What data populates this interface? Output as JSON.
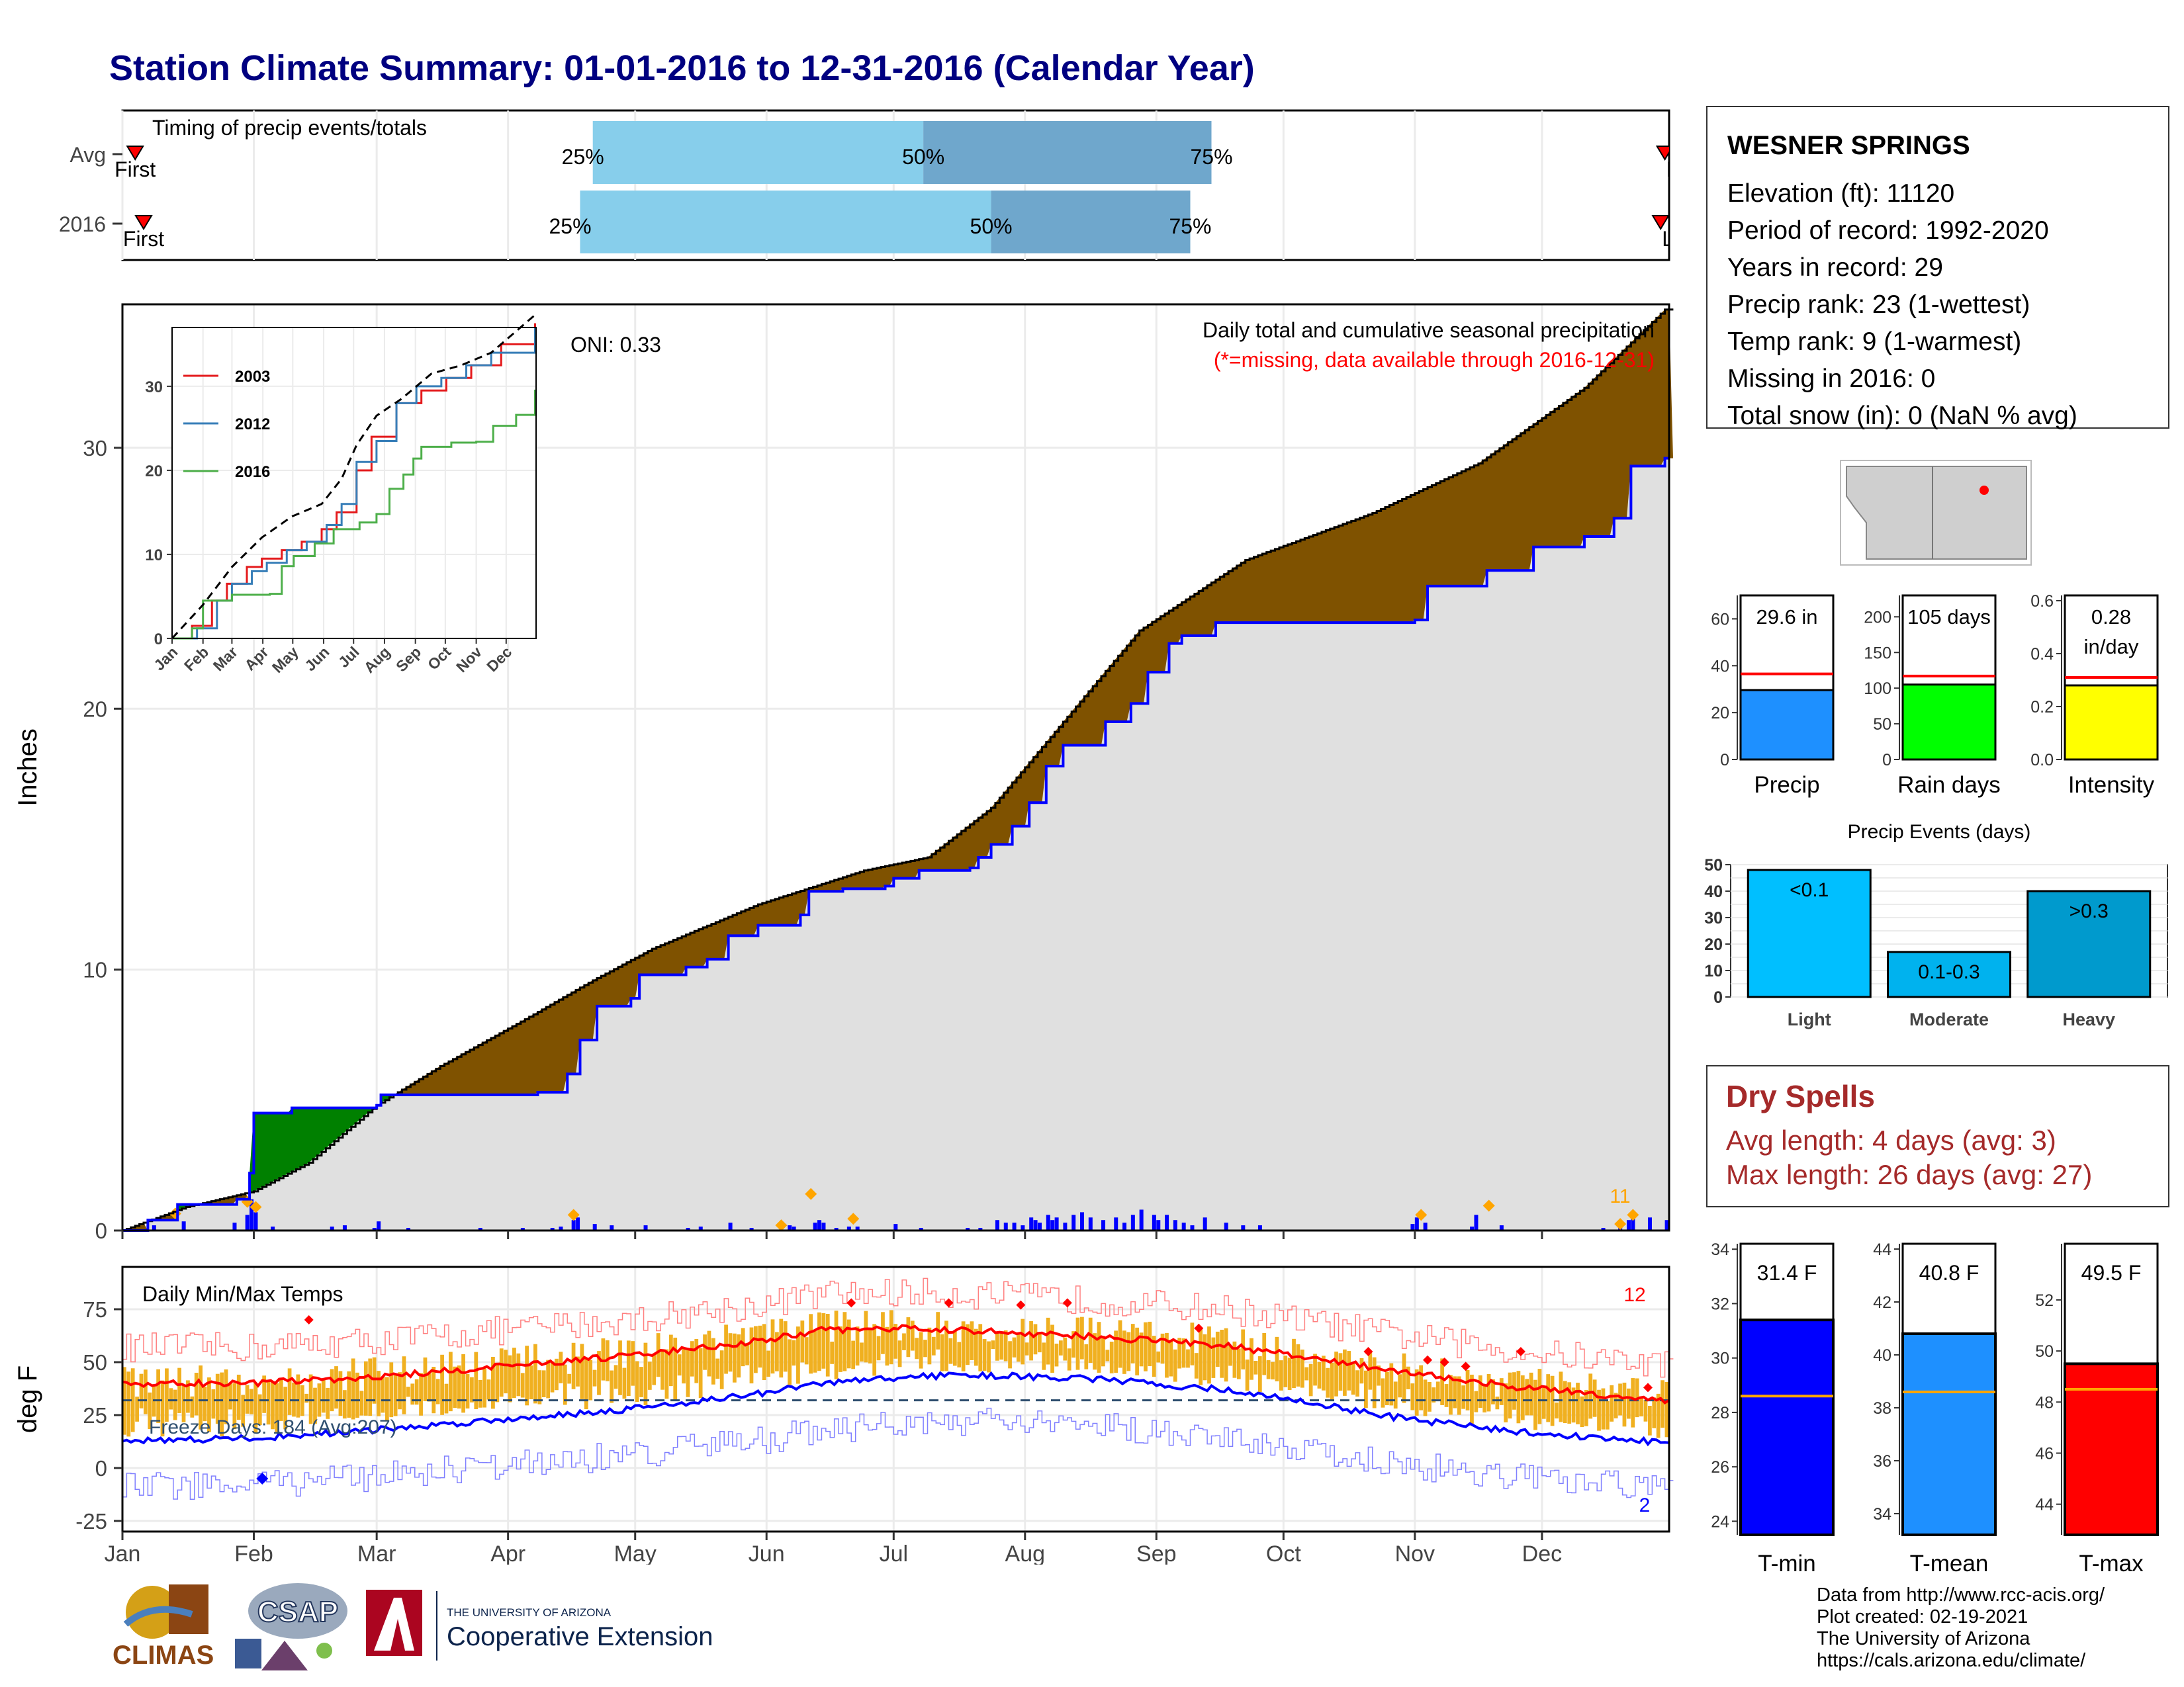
{
  "title": "Station Climate Summary: 01-01-2016 to 12-31-2016 (Calendar Year)",
  "colors": {
    "cum_2016": "#0000ff",
    "cum_avg": "#000000",
    "above_fill": "#008000",
    "below_fill": "#7f5200",
    "base_fill": "#e0e0e0",
    "q1_band": "#87ceeb",
    "q2_band": "#6fa7cc",
    "title": "#000080",
    "dry": "#a52a2a"
  },
  "timing": {
    "label": "Timing of precip events/totals",
    "rows": [
      {
        "name": "Avg",
        "first_label": "First",
        "last_label": "Last",
        "first_doy": 3,
        "last_doy": 364,
        "q25_doy": 111,
        "q50_doy": 189,
        "q75_doy": 257,
        "q25_label": "25%",
        "q50_label": "50%",
        "q75_label": "75%"
      },
      {
        "name": "2016",
        "first_label": "First",
        "last_label": "Last",
        "first_doy": 5,
        "last_doy": 363,
        "q25_doy": 108,
        "q50_doy": 205,
        "q75_doy": 252,
        "q25_label": "25%",
        "q50_label": "50%",
        "q75_label": "75%"
      }
    ]
  },
  "precip": {
    "ylabel": "Inches",
    "yticks": [
      "0",
      "10",
      "20",
      "30"
    ],
    "ylim": [
      0,
      35.5
    ],
    "oni": "ONI: 0.33",
    "note1": "Daily total and cumulative seasonal precipitation",
    "note2": "(*=missing, data available through 2016-12-31)",
    "daily_max_label": "11",
    "cum2016": [
      [
        0,
        0
      ],
      [
        6,
        0.4
      ],
      [
        13,
        1.0
      ],
      [
        27,
        1.2
      ],
      [
        30,
        2.2
      ],
      [
        31,
        4.5
      ],
      [
        40,
        4.7
      ],
      [
        60,
        4.8
      ],
      [
        61,
        5.2
      ],
      [
        98,
        5.3
      ],
      [
        105,
        6.0
      ],
      [
        108,
        7.3
      ],
      [
        112,
        8.6
      ],
      [
        120,
        8.9
      ],
      [
        122,
        9.8
      ],
      [
        133,
        10.1
      ],
      [
        138,
        10.4
      ],
      [
        143,
        11.3
      ],
      [
        150,
        11.7
      ],
      [
        160,
        12.1
      ],
      [
        162,
        13.0
      ],
      [
        170,
        13.1
      ],
      [
        180,
        13.2
      ],
      [
        182,
        13.5
      ],
      [
        188,
        13.8
      ],
      [
        200,
        13.9
      ],
      [
        202,
        14.3
      ],
      [
        205,
        14.8
      ],
      [
        210,
        15.5
      ],
      [
        214,
        16.4
      ],
      [
        218,
        17.8
      ],
      [
        222,
        18.6
      ],
      [
        232,
        19.5
      ],
      [
        238,
        20.2
      ],
      [
        242,
        21.4
      ],
      [
        247,
        22.5
      ],
      [
        250,
        22.8
      ],
      [
        258,
        23.3
      ],
      [
        280,
        23.3
      ],
      [
        305,
        23.4
      ],
      [
        308,
        24.7
      ],
      [
        322,
        25.3
      ],
      [
        333,
        26.2
      ],
      [
        345,
        26.6
      ],
      [
        352,
        27.3
      ],
      [
        356,
        29.3
      ],
      [
        364,
        29.6
      ]
    ],
    "cumavg": [
      [
        0,
        0
      ],
      [
        15,
        0.9
      ],
      [
        31,
        1.5
      ],
      [
        44,
        2.6
      ],
      [
        60,
        4.8
      ],
      [
        75,
        6.3
      ],
      [
        95,
        8.1
      ],
      [
        110,
        9.5
      ],
      [
        125,
        10.8
      ],
      [
        150,
        12.5
      ],
      [
        175,
        13.8
      ],
      [
        190,
        14.3
      ],
      [
        205,
        16.2
      ],
      [
        222,
        19.5
      ],
      [
        240,
        23.0
      ],
      [
        265,
        25.7
      ],
      [
        295,
        27.5
      ],
      [
        320,
        29.4
      ],
      [
        345,
        32.3
      ],
      [
        364,
        35.3
      ]
    ],
    "daily_bars": [
      [
        7,
        0.2
      ],
      [
        14,
        0.35
      ],
      [
        26,
        0.3
      ],
      [
        29,
        0.6
      ],
      [
        30,
        1.2
      ],
      [
        31,
        0.7
      ],
      [
        35,
        0.15
      ],
      [
        49,
        0.15
      ],
      [
        52,
        0.2
      ],
      [
        59,
        0.1
      ],
      [
        60,
        0.35
      ],
      [
        67,
        0.1
      ],
      [
        84,
        0.1
      ],
      [
        94,
        0.1
      ],
      [
        101,
        0.1
      ],
      [
        103,
        0.15
      ],
      [
        106,
        0.4
      ],
      [
        107,
        0.5
      ],
      [
        111,
        0.25
      ],
      [
        115,
        0.2
      ],
      [
        123,
        0.2
      ],
      [
        133,
        0.1
      ],
      [
        136,
        0.15
      ],
      [
        143,
        0.3
      ],
      [
        148,
        0.1
      ],
      [
        155,
        0.25
      ],
      [
        157,
        0.2
      ],
      [
        158,
        0.15
      ],
      [
        163,
        0.3
      ],
      [
        164,
        0.4
      ],
      [
        165,
        0.3
      ],
      [
        168,
        0.1
      ],
      [
        171,
        0.15
      ],
      [
        173,
        0.15
      ],
      [
        182,
        0.25
      ],
      [
        188,
        0.1
      ],
      [
        199,
        0.1
      ],
      [
        202,
        0.1
      ],
      [
        206,
        0.4
      ],
      [
        208,
        0.3
      ],
      [
        210,
        0.3
      ],
      [
        212,
        0.2
      ],
      [
        214,
        0.5
      ],
      [
        215,
        0.4
      ],
      [
        216,
        0.3
      ],
      [
        218,
        0.6
      ],
      [
        219,
        0.4
      ],
      [
        220,
        0.5
      ],
      [
        222,
        0.3
      ],
      [
        224,
        0.6
      ],
      [
        226,
        0.7
      ],
      [
        228,
        0.5
      ],
      [
        231,
        0.4
      ],
      [
        234,
        0.5
      ],
      [
        236,
        0.3
      ],
      [
        238,
        0.6
      ],
      [
        240,
        0.8
      ],
      [
        243,
        0.6
      ],
      [
        244,
        0.4
      ],
      [
        246,
        0.6
      ],
      [
        248,
        0.4
      ],
      [
        250,
        0.3
      ],
      [
        252,
        0.2
      ],
      [
        255,
        0.5
      ],
      [
        260,
        0.3
      ],
      [
        264,
        0.2
      ],
      [
        268,
        0.2
      ],
      [
        304,
        0.25
      ],
      [
        305,
        0.5
      ],
      [
        307,
        0.3
      ],
      [
        318,
        0.15
      ],
      [
        319,
        0.6
      ],
      [
        325,
        0.2
      ],
      [
        349,
        0.1
      ],
      [
        353,
        0.3
      ],
      [
        355,
        0.4
      ],
      [
        356,
        0.6
      ],
      [
        360,
        0.5
      ],
      [
        364,
        0.4
      ]
    ],
    "extreme_pts": [
      [
        12,
        0.65
      ],
      [
        29,
        1.1
      ],
      [
        31,
        0.9
      ],
      [
        106,
        0.6
      ],
      [
        155,
        0.2
      ],
      [
        162,
        1.4
      ],
      [
        172,
        0.45
      ],
      [
        306,
        0.6
      ],
      [
        322,
        0.95
      ],
      [
        353,
        0.25
      ],
      [
        356,
        0.6
      ]
    ],
    "inset": {
      "yticks": [
        "0",
        "10",
        "20",
        "30"
      ],
      "ylim": [
        0,
        37
      ],
      "months": [
        "Jan",
        "Feb",
        "Mar",
        "Apr",
        "May",
        "Jun",
        "Jul",
        "Aug",
        "Sep",
        "Oct",
        "Nov",
        "Dec"
      ],
      "series": [
        {
          "name": "2003",
          "color": "#e41a1c",
          "points": [
            [
              0,
              0
            ],
            [
              20,
              1.5
            ],
            [
              40,
              4.5
            ],
            [
              55,
              6.5
            ],
            [
              75,
              8.5
            ],
            [
              90,
              9.5
            ],
            [
              110,
              10.5
            ],
            [
              130,
              11.5
            ],
            [
              150,
              13
            ],
            [
              165,
              15
            ],
            [
              185,
              20
            ],
            [
              200,
              24
            ],
            [
              225,
              28
            ],
            [
              250,
              29.5
            ],
            [
              275,
              31
            ],
            [
              300,
              32.5
            ],
            [
              330,
              35
            ],
            [
              364,
              37.5
            ]
          ]
        },
        {
          "name": "2012",
          "color": "#377eb8",
          "points": [
            [
              0,
              0
            ],
            [
              25,
              1.2
            ],
            [
              45,
              4.5
            ],
            [
              60,
              6.5
            ],
            [
              80,
              8
            ],
            [
              95,
              9
            ],
            [
              115,
              10.5
            ],
            [
              135,
              11.5
            ],
            [
              155,
              13.5
            ],
            [
              170,
              16
            ],
            [
              185,
              21
            ],
            [
              205,
              23.5
            ],
            [
              225,
              28
            ],
            [
              245,
              30
            ],
            [
              270,
              31
            ],
            [
              295,
              32.5
            ],
            [
              320,
              34
            ],
            [
              364,
              37
            ]
          ]
        },
        {
          "name": "2016",
          "color": "#4daf4a",
          "points": [
            [
              0,
              0
            ],
            [
              20,
              1.2
            ],
            [
              31,
              4.5
            ],
            [
              60,
              5.2
            ],
            [
              98,
              5.3
            ],
            [
              110,
              8.6
            ],
            [
              122,
              9.8
            ],
            [
              143,
              11.3
            ],
            [
              162,
              13.0
            ],
            [
              188,
              13.8
            ],
            [
              205,
              14.8
            ],
            [
              218,
              17.8
            ],
            [
              232,
              19.5
            ],
            [
              242,
              21.4
            ],
            [
              250,
              22.8
            ],
            [
              280,
              23.3
            ],
            [
              305,
              23.4
            ],
            [
              322,
              25.3
            ],
            [
              345,
              26.6
            ],
            [
              364,
              29.6
            ]
          ]
        }
      ],
      "avg_points": [
        [
          0,
          0
        ],
        [
          31,
          4
        ],
        [
          60,
          8.5
        ],
        [
          90,
          12
        ],
        [
          120,
          14.5
        ],
        [
          150,
          16
        ],
        [
          170,
          19
        ],
        [
          185,
          23
        ],
        [
          205,
          26.5
        ],
        [
          230,
          28.5
        ],
        [
          260,
          31.5
        ],
        [
          290,
          32.5
        ],
        [
          320,
          34
        ],
        [
          364,
          38.5
        ]
      ]
    }
  },
  "bars_small": [
    {
      "label": "Precip",
      "value_label": "29.6 in",
      "value": 29.6,
      "avg": 36.5,
      "ylim": [
        0,
        70
      ],
      "yticks": [
        "0",
        "20",
        "40",
        "60"
      ],
      "fill": "#1e90ff"
    },
    {
      "label": "Rain days",
      "value_label": "105 days",
      "value": 105,
      "avg": 117,
      "ylim": [
        0,
        230
      ],
      "yticks": [
        "0",
        "50",
        "100",
        "150",
        "200"
      ],
      "fill": "#00ff00"
    },
    {
      "label": "Intensity",
      "value_label": "0.28",
      "value_label2": "in/day",
      "value": 0.28,
      "avg": 0.31,
      "ylim": [
        0,
        0.62
      ],
      "yticks": [
        "0.0",
        "0.2",
        "0.4",
        "0.6"
      ],
      "fill": "#ffff00"
    }
  ],
  "events": {
    "title": "Precip Events (days)",
    "ylim": [
      0,
      50
    ],
    "yticks": [
      "0",
      "10",
      "20",
      "30",
      "40",
      "50"
    ],
    "bars": [
      {
        "name": "Light",
        "value": 48,
        "label": "<0.1",
        "fill": "#00bfff"
      },
      {
        "name": "Moderate",
        "value": 17,
        "label": "0.1-0.3",
        "fill": "#00b2ee"
      },
      {
        "name": "Heavy",
        "value": 40,
        "label": ">0.3",
        "fill": "#009acd"
      }
    ]
  },
  "station": {
    "name": "WESNER SPRINGS",
    "lines": [
      "Elevation (ft): 11120",
      "Period of record: 1992-2020",
      "Years in record: 29",
      "Precip rank: 23 (1-wettest)",
      "Temp rank: 9 (1-warmest)",
      "Missing in 2016: 0",
      "Total snow (in): 0 (NaN % avg)"
    ]
  },
  "dry_spells": {
    "title": "Dry Spells",
    "avg_line": "Avg length: 4 days (avg: 3)",
    "max_line": "Max length: 26 days (avg: 27)"
  },
  "temps": {
    "label": "Daily Min/Max Temps",
    "ylabel": "deg F",
    "yticks": [
      "-25",
      "0",
      "25",
      "50",
      "75"
    ],
    "ylim": [
      -30,
      95
    ],
    "freeze_label": "Freeze Days: 184 (Avg:207)",
    "freeze_line": 32,
    "record_high_count": "12",
    "record_low_count": "2",
    "avg_max": [
      [
        0,
        40
      ],
      [
        30,
        40
      ],
      [
        60,
        43
      ],
      [
        90,
        48
      ],
      [
        120,
        53
      ],
      [
        150,
        60
      ],
      [
        165,
        65
      ],
      [
        185,
        66
      ],
      [
        200,
        65
      ],
      [
        230,
        62
      ],
      [
        260,
        58
      ],
      [
        280,
        52
      ],
      [
        300,
        46
      ],
      [
        330,
        38
      ],
      [
        364,
        32
      ]
    ],
    "avg_min": [
      [
        0,
        13
      ],
      [
        30,
        14
      ],
      [
        60,
        18
      ],
      [
        90,
        23
      ],
      [
        120,
        28
      ],
      [
        150,
        35
      ],
      [
        165,
        40
      ],
      [
        185,
        43
      ],
      [
        200,
        44
      ],
      [
        230,
        42
      ],
      [
        260,
        37
      ],
      [
        280,
        31
      ],
      [
        300,
        24
      ],
      [
        330,
        17
      ],
      [
        364,
        12
      ]
    ]
  },
  "temp_bars": [
    {
      "label": "T-min",
      "value_label": "31.4 F",
      "value": 31.4,
      "avg": 28.6,
      "ylim": [
        23.5,
        34.2
      ],
      "yticks": [
        "24",
        "26",
        "28",
        "30",
        "32",
        "34"
      ],
      "fill": "#0000ff"
    },
    {
      "label": "T-mean",
      "value_label": "40.8 F",
      "value": 40.8,
      "avg": 38.6,
      "ylim": [
        33.2,
        44.2
      ],
      "yticks": [
        "34",
        "36",
        "38",
        "40",
        "42",
        "44"
      ],
      "fill": "#1e90ff"
    },
    {
      "label": "T-max",
      "value_label": "49.5 F",
      "value": 49.5,
      "avg": 48.5,
      "ylim": [
        42.8,
        54.2
      ],
      "yticks": [
        "44",
        "46",
        "48",
        "50",
        "52"
      ],
      "fill": "#ff0000"
    }
  ],
  "months": [
    "Jan",
    "Feb",
    "Mar",
    "Apr",
    "May",
    "Jun",
    "Jul",
    "Aug",
    "Sep",
    "Oct",
    "Nov",
    "Dec"
  ],
  "month_doy": [
    0,
    31,
    60,
    91,
    121,
    152,
    182,
    213,
    244,
    274,
    305,
    335
  ],
  "logos": {
    "climas": "CLIMAS",
    "csap": "CSAP",
    "ua_top": "THE UNIVERSITY OF ARIZONA",
    "ua_main": "Cooperative Extension"
  },
  "credits": [
    "Data from http://www.rcc-acis.org/",
    "Plot created: 02-19-2021",
    "The University of Arizona",
    "https://cals.arizona.edu/climate/"
  ]
}
